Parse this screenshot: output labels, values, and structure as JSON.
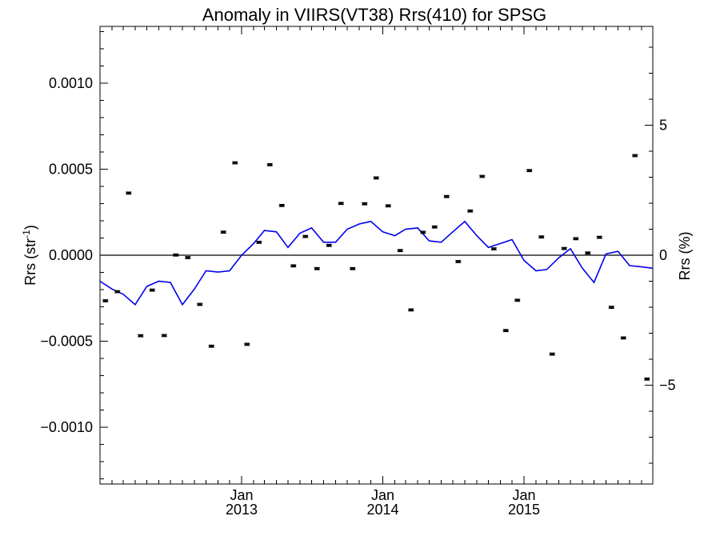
{
  "chart_data": {
    "type": "scatter",
    "title": "Anomaly in VIIRS(VT38) Rrs(410) for SPSG",
    "ylabel_left_main": "Rrs (str",
    "ylabel_left_sup": "-1",
    "ylabel_left_close": ")",
    "ylabel_right": "Rrs (%)",
    "xlim": [
      "2012-01-01",
      "2015-11-30"
    ],
    "ylim_left": [
      -0.00133,
      0.00133
    ],
    "ylim_right": [
      -8.8,
      8.8
    ],
    "grid": false,
    "zero_line": true,
    "left_ticks": [
      {
        "value": 0.001,
        "label": "0.0010"
      },
      {
        "value": 0.0005,
        "label": "0.0005"
      },
      {
        "value": 0.0,
        "label": "0.0000"
      },
      {
        "value": -0.0005,
        "label": "−0.0005"
      },
      {
        "value": -0.001,
        "label": "−0.0010"
      }
    ],
    "right_ticks": [
      {
        "value": 5,
        "label": "5"
      },
      {
        "value": 0,
        "label": "0"
      },
      {
        "value": -5,
        "label": "−5"
      }
    ],
    "x_ticks": [
      {
        "date": "2013-01-01",
        "month": "Jan",
        "year": "2013"
      },
      {
        "date": "2014-01-01",
        "month": "Jan",
        "year": "2014"
      },
      {
        "date": "2015-01-01",
        "month": "Jan",
        "year": "2015"
      }
    ],
    "series": [
      {
        "kind": "points_with_errorbars",
        "axis": "left",
        "color": "#000000",
        "error": 6e-06,
        "x": [
          "2012-01-15",
          "2012-02-15",
          "2012-03-15",
          "2012-04-15",
          "2012-05-15",
          "2012-06-15",
          "2012-07-15",
          "2012-08-15",
          "2012-09-15",
          "2012-10-15",
          "2012-11-15",
          "2012-12-15",
          "2013-01-15",
          "2013-02-15",
          "2013-03-15",
          "2013-04-15",
          "2013-05-15",
          "2013-06-15",
          "2013-07-15",
          "2013-08-15",
          "2013-09-15",
          "2013-10-15",
          "2013-11-15",
          "2013-12-15",
          "2014-01-15",
          "2014-02-15",
          "2014-03-15",
          "2014-04-15",
          "2014-05-15",
          "2014-06-15",
          "2014-07-15",
          "2014-08-15",
          "2014-09-15",
          "2014-10-15",
          "2014-11-15",
          "2014-12-15",
          "2015-01-15",
          "2015-02-15",
          "2015-03-15",
          "2015-04-15",
          "2015-05-15",
          "2015-06-15",
          "2015-07-15",
          "2015-08-15",
          "2015-09-15",
          "2015-10-15",
          "2015-11-15"
        ],
        "y": [
          -0.000265,
          -0.000212,
          0.000361,
          -0.000468,
          -0.000203,
          -0.000467,
          1e-06,
          -1.4e-05,
          -0.000286,
          -0.000529,
          0.000134,
          0.000537,
          -0.000518,
          7.5e-05,
          0.000526,
          0.000289,
          -6.2e-05,
          0.000109,
          -7.8e-05,
          5.7e-05,
          0.000301,
          -7.8e-05,
          0.000299,
          0.000449,
          0.000287,
          2.7e-05,
          -0.000318,
          0.000133,
          0.000164,
          0.000341,
          -3.7e-05,
          0.000257,
          0.000458,
          3.7e-05,
          -0.000438,
          -0.000262,
          0.000492,
          0.000106,
          -0.000575,
          3.9e-05,
          9.6e-05,
          1.3e-05,
          0.000104,
          -0.000303,
          -0.000481,
          0.000579,
          -0.00072
        ]
      },
      {
        "kind": "line",
        "axis": "right",
        "color": "#0000ee",
        "x": [
          "2012-01-01",
          "2012-02-01",
          "2012-03-01",
          "2012-04-01",
          "2012-05-01",
          "2012-06-01",
          "2012-07-01",
          "2012-08-01",
          "2012-09-01",
          "2012-10-01",
          "2012-11-01",
          "2012-12-01",
          "2013-01-01",
          "2013-02-01",
          "2013-03-01",
          "2013-04-01",
          "2013-05-01",
          "2013-06-01",
          "2013-07-01",
          "2013-08-01",
          "2013-09-01",
          "2013-10-01",
          "2013-11-01",
          "2013-12-01",
          "2014-01-01",
          "2014-02-01",
          "2014-03-01",
          "2014-04-01",
          "2014-05-01",
          "2014-06-01",
          "2014-07-01",
          "2014-08-01",
          "2014-09-01",
          "2014-10-01",
          "2014-11-01",
          "2014-12-01",
          "2015-01-01",
          "2015-02-01",
          "2015-03-01",
          "2015-04-01",
          "2015-05-01",
          "2015-06-01",
          "2015-07-01",
          "2015-08-01",
          "2015-09-01",
          "2015-10-01",
          "2015-11-01",
          "2015-11-30"
        ],
        "y": [
          -1.0,
          -1.3,
          -1.5,
          -1.9,
          -1.2,
          -1.0,
          -1.05,
          -1.9,
          -1.3,
          -0.6,
          -0.65,
          -0.6,
          0.0,
          0.45,
          0.95,
          0.9,
          0.3,
          0.85,
          1.05,
          0.5,
          0.5,
          1.0,
          1.2,
          1.3,
          0.9,
          0.75,
          1.0,
          1.05,
          0.55,
          0.5,
          0.9,
          1.3,
          0.75,
          0.3,
          0.45,
          0.6,
          -0.2,
          -0.6,
          -0.55,
          -0.1,
          0.25,
          -0.5,
          -1.05,
          0.05,
          0.15,
          -0.4,
          -0.45,
          -0.5
        ]
      }
    ]
  }
}
